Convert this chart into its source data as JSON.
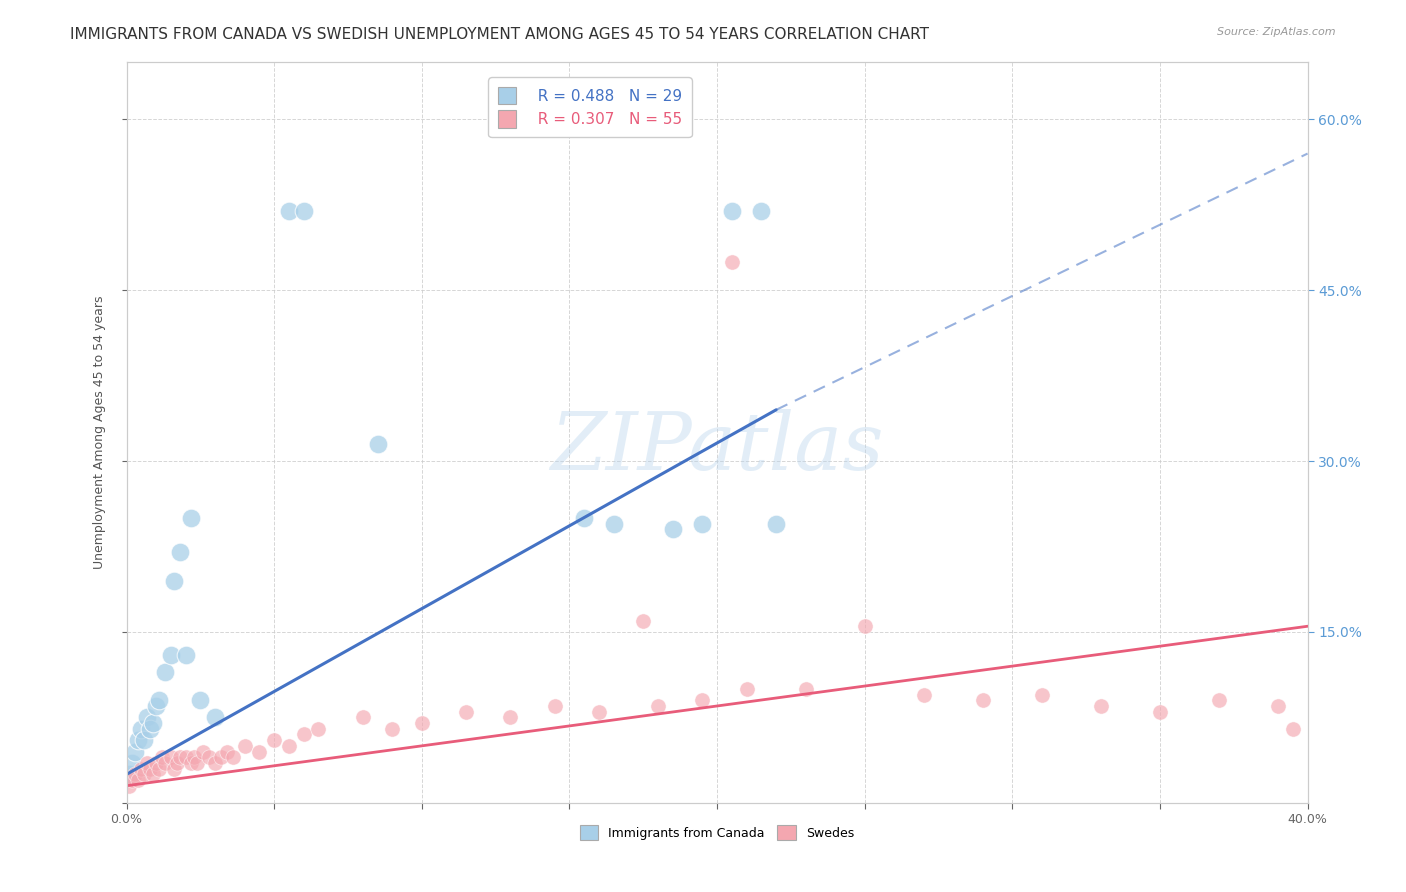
{
  "title": "IMMIGRANTS FROM CANADA VS SWEDISH UNEMPLOYMENT AMONG AGES 45 TO 54 YEARS CORRELATION CHART",
  "source": "Source: ZipAtlas.com",
  "ylabel": "Unemployment Among Ages 45 to 54 years",
  "xlim": [
    0.0,
    0.4
  ],
  "ylim": [
    0.0,
    0.65
  ],
  "blue_R": 0.488,
  "blue_N": 29,
  "pink_R": 0.307,
  "pink_N": 55,
  "blue_color": "#a8cfe8",
  "pink_color": "#f4a7b0",
  "blue_line_color": "#4472c4",
  "pink_line_color": "#e85c7a",
  "blue_line_solid_end": 0.22,
  "blue_line_dashed_end": 0.4,
  "blue_line_y0": 0.025,
  "blue_line_y1_solid": 0.345,
  "blue_line_y1_dashed": 0.57,
  "pink_line_y0": 0.015,
  "pink_line_y1": 0.155,
  "watermark_color": "#b8d4ec",
  "watermark_alpha": 0.4,
  "grid_color": "#cccccc",
  "background_color": "#ffffff",
  "title_fontsize": 11,
  "axis_fontsize": 9,
  "tick_fontsize": 9,
  "legend_fontsize": 11,
  "blue_x": [
    0.001,
    0.002,
    0.003,
    0.004,
    0.005,
    0.006,
    0.007,
    0.008,
    0.009,
    0.01,
    0.011,
    0.013,
    0.015,
    0.016,
    0.018,
    0.02,
    0.022,
    0.025,
    0.03,
    0.055,
    0.06,
    0.085,
    0.155,
    0.165,
    0.185,
    0.195,
    0.205,
    0.215,
    0.22
  ],
  "blue_y": [
    0.025,
    0.035,
    0.045,
    0.055,
    0.065,
    0.055,
    0.075,
    0.065,
    0.07,
    0.085,
    0.09,
    0.115,
    0.13,
    0.195,
    0.22,
    0.13,
    0.25,
    0.09,
    0.075,
    0.52,
    0.52,
    0.315,
    0.25,
    0.245,
    0.24,
    0.245,
    0.52,
    0.52,
    0.245
  ],
  "pink_x": [
    0.001,
    0.002,
    0.003,
    0.004,
    0.005,
    0.006,
    0.007,
    0.008,
    0.009,
    0.01,
    0.011,
    0.012,
    0.013,
    0.015,
    0.016,
    0.017,
    0.018,
    0.02,
    0.022,
    0.023,
    0.024,
    0.026,
    0.028,
    0.03,
    0.032,
    0.034,
    0.036,
    0.04,
    0.045,
    0.05,
    0.055,
    0.06,
    0.065,
    0.08,
    0.09,
    0.1,
    0.115,
    0.13,
    0.145,
    0.16,
    0.18,
    0.195,
    0.21,
    0.23,
    0.25,
    0.27,
    0.29,
    0.31,
    0.33,
    0.35,
    0.37,
    0.39,
    0.175,
    0.205,
    0.395
  ],
  "pink_y": [
    0.015,
    0.02,
    0.025,
    0.02,
    0.03,
    0.025,
    0.035,
    0.03,
    0.025,
    0.035,
    0.03,
    0.04,
    0.035,
    0.04,
    0.03,
    0.035,
    0.04,
    0.04,
    0.035,
    0.04,
    0.035,
    0.045,
    0.04,
    0.035,
    0.04,
    0.045,
    0.04,
    0.05,
    0.045,
    0.055,
    0.05,
    0.06,
    0.065,
    0.075,
    0.065,
    0.07,
    0.08,
    0.075,
    0.085,
    0.08,
    0.085,
    0.09,
    0.1,
    0.1,
    0.155,
    0.095,
    0.09,
    0.095,
    0.085,
    0.08,
    0.09,
    0.085,
    0.16,
    0.475,
    0.065
  ]
}
